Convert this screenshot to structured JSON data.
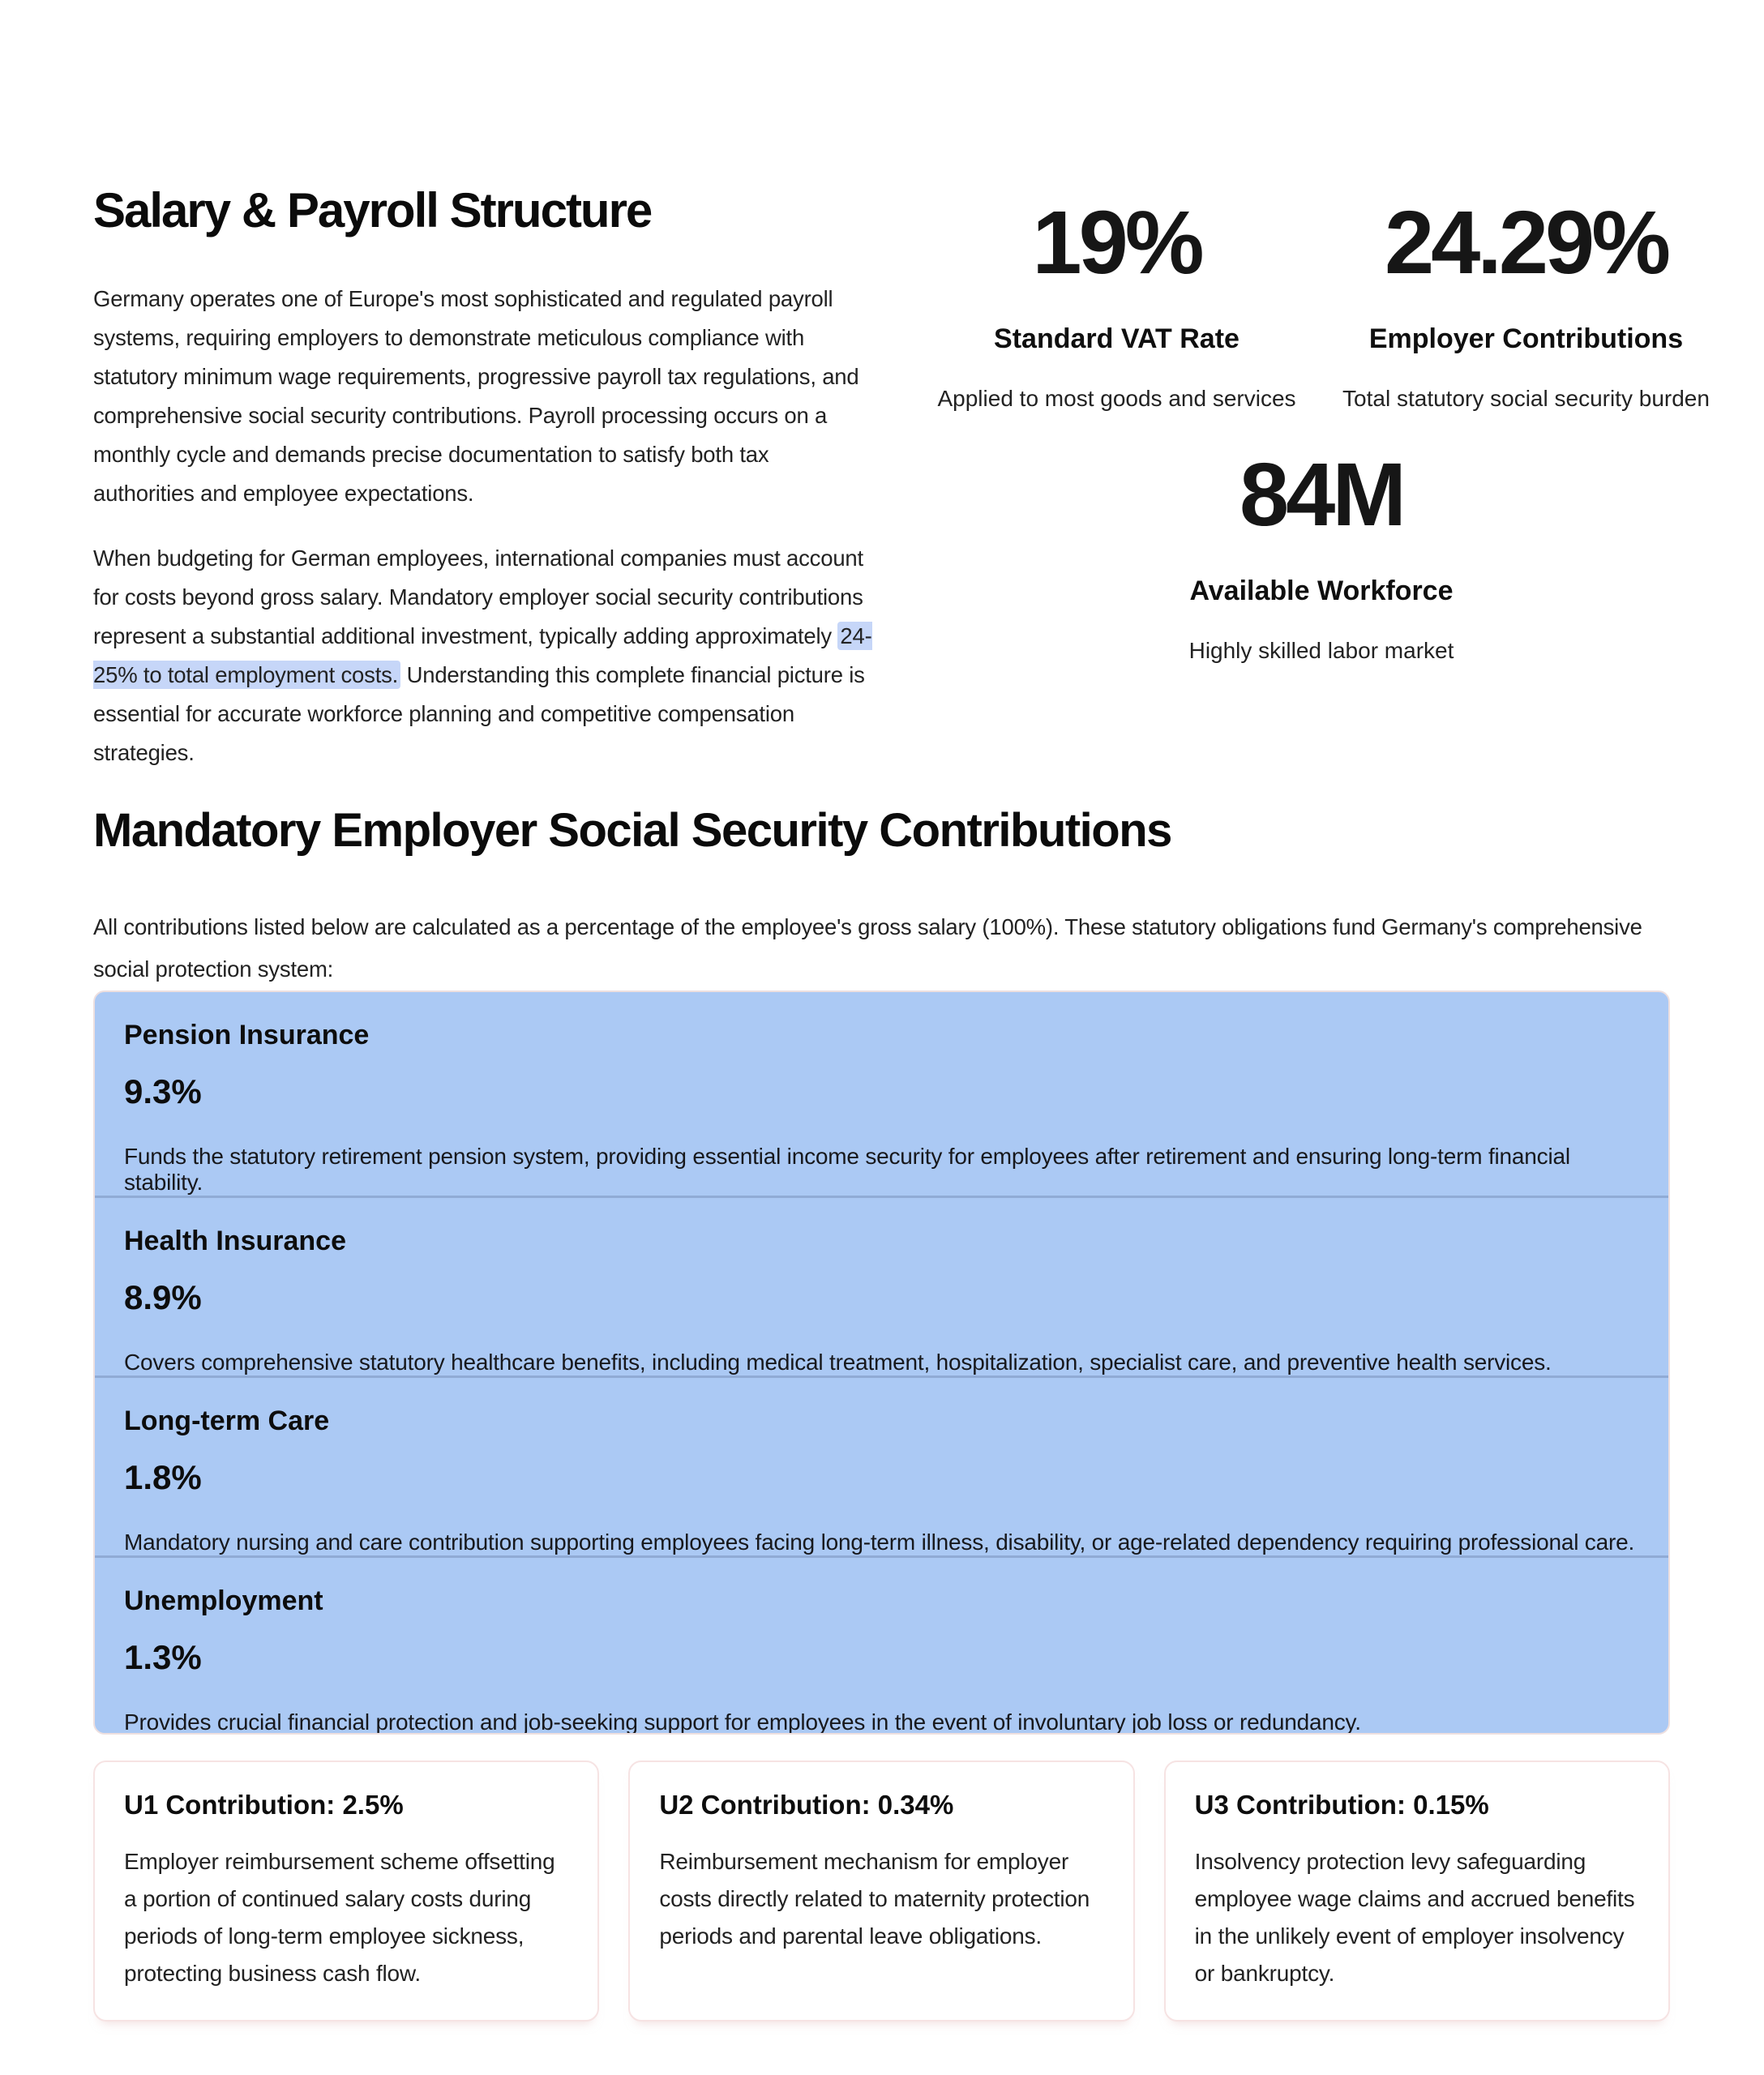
{
  "section1": {
    "title": "Salary & Payroll Structure",
    "paragraph1": "Germany operates one of Europe's most sophisticated and regulated payroll systems, requiring employers to demonstrate meticulous compliance with statutory minimum wage requirements, progressive payroll tax regulations, and comprehensive social security contributions. Payroll processing occurs on a monthly cycle and demands precise documentation to satisfy both tax authorities and employee expectations.",
    "paragraph2_before": "When budgeting for German employees, international companies must account for costs beyond gross salary. Mandatory employer social security contributions represent a substantial additional investment, typically adding approximately ",
    "paragraph2_highlight": "24-25% to total employment costs.",
    "paragraph2_after": " Understanding this complete financial picture is essential for accurate workforce planning and competitive compensation strategies.",
    "stats": [
      {
        "value": "19%",
        "label": "Standard VAT Rate",
        "description": "Applied to most goods and services"
      },
      {
        "value": "24.29%",
        "label": "Employer Contributions",
        "description": "Total statutory social security burden"
      },
      {
        "value": "84M",
        "label": "Available Workforce",
        "description": "Highly skilled labor market"
      }
    ]
  },
  "section2": {
    "title": "Mandatory Employer Social Security Contributions",
    "intro": "All contributions listed below are calculated as a percentage of the employee's gross salary (100%). These statutory obligations fund Germany's comprehensive social protection system:",
    "contributions": [
      {
        "name": "Pension Insurance",
        "rate": "9.3%",
        "description": "Funds the statutory retirement pension system, providing essential income security for employees after retirement and ensuring long-term financial stability."
      },
      {
        "name": "Health Insurance",
        "rate": "8.9%",
        "description": "Covers comprehensive statutory healthcare benefits, including medical treatment, hospitalization, specialist care, and preventive health services."
      },
      {
        "name": "Long-term Care",
        "rate": "1.8%",
        "description": "Mandatory nursing and care contribution supporting employees facing long-term illness, disability, or age-related dependency requiring professional care."
      },
      {
        "name": "Unemployment",
        "rate": "1.3%",
        "description": "Provides crucial financial protection and job-seeking support for employees in the event of involuntary job loss or redundancy."
      }
    ],
    "u_contributions": [
      {
        "title": "U1 Contribution: 2.5%",
        "description": "Employer reimbursement scheme offsetting a portion of continued salary costs during periods of long-term employee sickness, protecting business cash flow."
      },
      {
        "title": "U2 Contribution: 0.34%",
        "description": "Reimbursement mechanism for employer costs directly related to maternity protection periods and parental leave obligations."
      },
      {
        "title": "U3 Contribution: 0.15%",
        "description": "Insolvency protection levy safeguarding employee wage claims and accrued benefits in the unlikely event of employer insolvency or bankruptcy."
      }
    ]
  },
  "colors": {
    "highlight": "#c6d6f8",
    "contribution_panel_bg": "#abc9f4",
    "u_card_border": "#f6e3e3",
    "heading_text": "#0b0b0b",
    "body_text": "#222222"
  }
}
